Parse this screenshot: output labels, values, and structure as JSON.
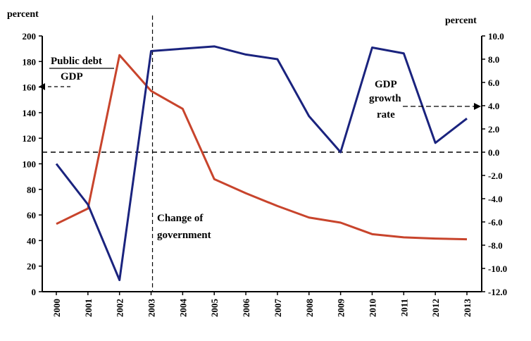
{
  "chart_data": {
    "type": "line",
    "categories": [
      "2000",
      "2001",
      "2002",
      "2003",
      "2004",
      "2005",
      "2006",
      "2007",
      "2008",
      "2009",
      "2010",
      "2011",
      "2012",
      "2013"
    ],
    "left_axis": {
      "label": "percent",
      "ylim": [
        0,
        200
      ],
      "ticks": [
        "0",
        "20",
        "40",
        "60",
        "80",
        "100",
        "120",
        "140",
        "160",
        "180",
        "200"
      ]
    },
    "right_axis": {
      "label": "percent",
      "ylim": [
        -12,
        10
      ],
      "ticks": [
        "-12.0",
        "-10.0",
        "-8.0",
        "-6.0",
        "-4.0",
        "-2.0",
        "0.0",
        "2.0",
        "4.0",
        "6.0",
        "8.0",
        "10.0"
      ]
    },
    "series": [
      {
        "axis": "left",
        "color": "#c8442c",
        "values": [
          53,
          65,
          185,
          157,
          143,
          88,
          77,
          67,
          58,
          54,
          45,
          42.5,
          41.5,
          41
        ]
      },
      {
        "axis": "right",
        "color": "#1a237e",
        "values": [
          -1.0,
          -4.5,
          -11.0,
          8.7,
          8.9,
          9.1,
          8.4,
          8.0,
          3.1,
          0.0,
          9.0,
          8.5,
          0.8,
          2.9
        ]
      }
    ],
    "zero_reference_line": 0,
    "annotations": {
      "debt_top": "Public debt",
      "debt_bottom": "GDP",
      "gdp_line1": "GDP",
      "gdp_line2": "growth",
      "gdp_line3": "rate",
      "change_line1": "Change of",
      "change_line2": "government"
    },
    "event_marker_category": "2003",
    "grid": false,
    "legend": "none"
  }
}
